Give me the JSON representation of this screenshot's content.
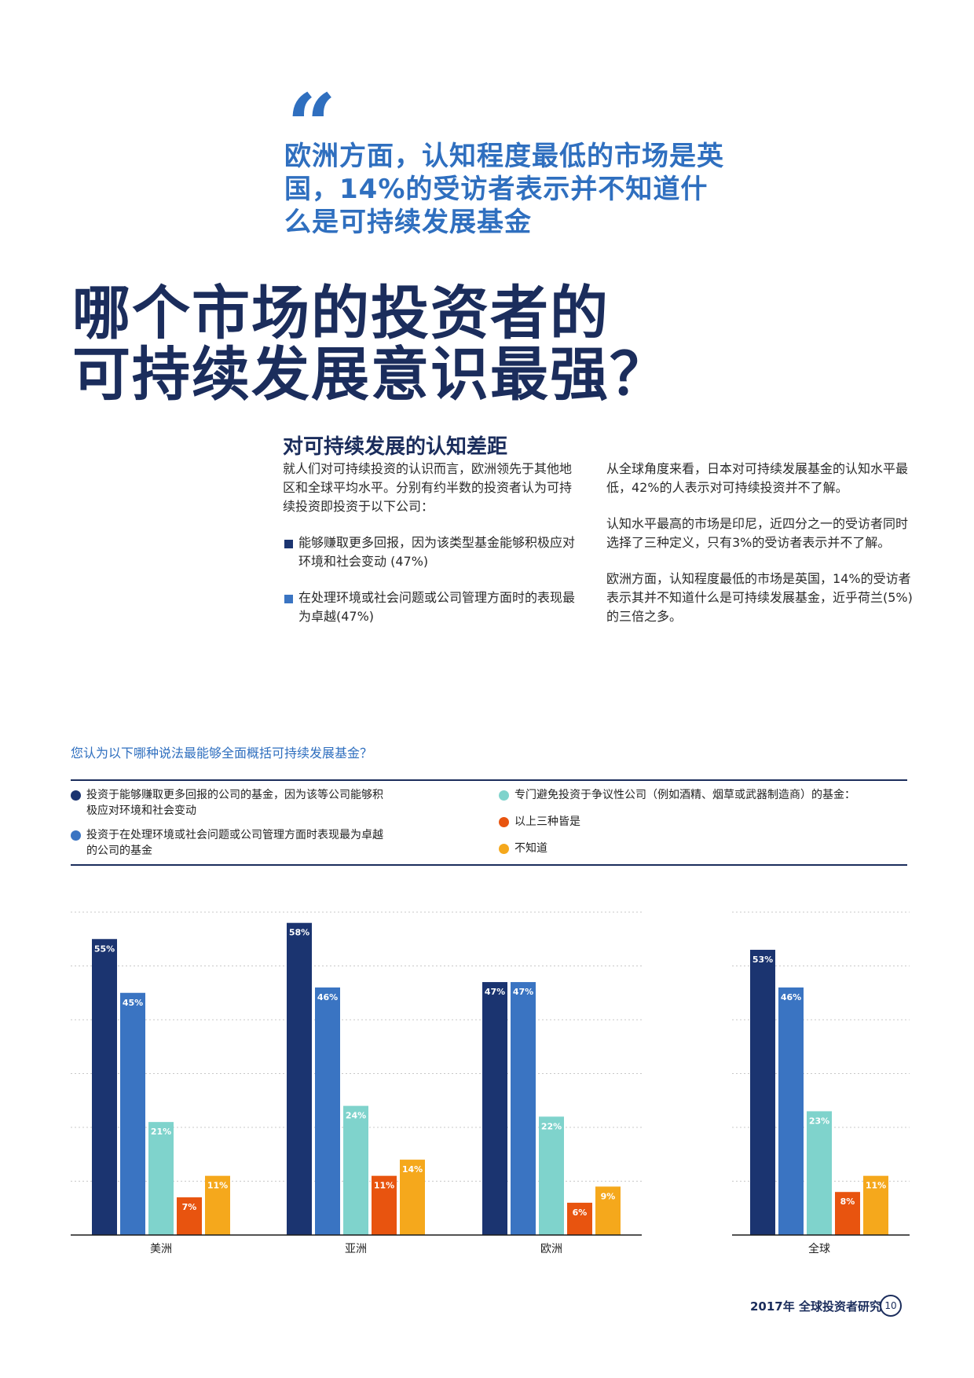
{
  "quote": {
    "mark": "“",
    "text": "欧洲方面，认知程度最低的市场是英国，14%的受访者表示并不知道什么是可持续发展基金"
  },
  "heading": {
    "line1": "哪个市场的投资者的",
    "line2": "可持续发展意识最强？"
  },
  "section": {
    "title": "对可持续发展的认知差距",
    "left_intro": "就人们对可持续投资的认识而言，欧洲领先于其他地区和全球平均水平。分别有约半数的投资者认为可持续投资即投资于以下公司：",
    "bullets": [
      "能够赚取更多回报，因为该类型基金能够积极应对环境和社会变动 (47%)",
      "在处理环境或社会问题或公司管理方面时的表现最为卓越(47%)"
    ],
    "right_paragraphs": [
      "从全球角度来看，日本对可持续发展基金的认知水平最低，42%的人表示对可持续投资并不了解。",
      "认知水平最高的市场是印尼，近四分之一的受访者同时选择了三种定义，只有3%的受访者表示并不了解。",
      "欧洲方面，认知程度最低的市场是英国，14%的受访者表示其并不知道什么是可持续发展基金，近乎荷兰(5%)的三倍之多。"
    ]
  },
  "colors": {
    "navy": "#1b3470",
    "blue": "#3a74c2",
    "teal": "#7fd3cc",
    "orange": "#e8540f",
    "yellow": "#f5a81c"
  },
  "chart_data": {
    "type": "bar",
    "title": "您认为以下哪种说法最能够全面概括可持续发展基金？",
    "categories": [
      "美洲",
      "亚洲",
      "欧洲",
      "全球"
    ],
    "series": [
      {
        "name": "投资于能够赚取更多回报的公司的基金，因为该等公司能够积极应对环境和社会变动",
        "color": "#1b3470",
        "values": [
          55,
          58,
          47,
          53
        ]
      },
      {
        "name": "投资于在处理环境或社会问题或公司管理方面时表现最为卓越的公司的基金",
        "color": "#3a74c2",
        "values": [
          45,
          46,
          47,
          46
        ]
      },
      {
        "name": "专门避免投资于争议性公司（例如酒精、烟草或武器制造商）的基金：",
        "color": "#7fd3cc",
        "values": [
          21,
          24,
          22,
          23
        ]
      },
      {
        "name": "以上三种皆是",
        "color": "#e8540f",
        "values": [
          7,
          11,
          6,
          8
        ]
      },
      {
        "name": "不知道",
        "color": "#f5a81c",
        "values": [
          11,
          14,
          9,
          11
        ]
      }
    ],
    "ylim": [
      0,
      60
    ],
    "grid": true,
    "legend": "top"
  },
  "footer": {
    "text": "2017年 全球投资者研究",
    "page": "10"
  }
}
